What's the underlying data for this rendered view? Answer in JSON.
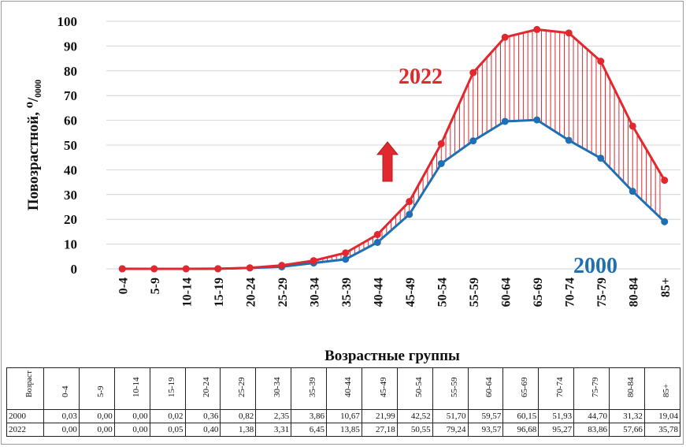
{
  "chart_data": {
    "type": "line",
    "ylabel": "Повозрастной, ⁰/₀₀₀₀",
    "xlabel": "Возрастные группы",
    "ylim": [
      0,
      100
    ],
    "yticks": [
      0,
      10,
      20,
      30,
      40,
      50,
      60,
      70,
      80,
      90,
      100
    ],
    "categories": [
      "0-4",
      "5-9",
      "10-14",
      "15-19",
      "20-24",
      "25-29",
      "30-34",
      "35-39",
      "40-44",
      "45-49",
      "50-54",
      "55-59",
      "60-64",
      "65-69",
      "70-74",
      "75-79",
      "80-84",
      "85+"
    ],
    "series": [
      {
        "name": "2000",
        "color": "#1f6fb4",
        "values": [
          0.03,
          0.0,
          0.0,
          0.02,
          0.36,
          0.82,
          2.35,
          3.86,
          10.67,
          21.99,
          42.52,
          51.7,
          59.57,
          60.15,
          51.93,
          44.7,
          31.32,
          19.04
        ]
      },
      {
        "name": "2022",
        "color": "#e0282e",
        "values": [
          0.0,
          0.0,
          0.0,
          0.05,
          0.4,
          1.38,
          3.31,
          6.45,
          13.85,
          27.18,
          50.55,
          79.24,
          93.57,
          96.68,
          95.27,
          83.86,
          57.66,
          35.78
        ]
      }
    ],
    "grid": true,
    "hatch_between_series": true,
    "annotations": {
      "up_arrow": true,
      "arrow_color": "#e0282e"
    }
  },
  "table": {
    "header_label": "Возраст",
    "categories": [
      "0-4",
      "5-9",
      "10-14",
      "15-19",
      "20-24",
      "25-29",
      "30-34",
      "35-39",
      "40-44",
      "45-49",
      "50-54",
      "55-59",
      "60-64",
      "65-69",
      "70-74",
      "75-79",
      "80-84",
      "85+"
    ],
    "rows": [
      {
        "label": "2000",
        "values": [
          "0,03",
          "0,00",
          "0,00",
          "0,02",
          "0,36",
          "0,82",
          "2,35",
          "3,86",
          "10,67",
          "21,99",
          "42,52",
          "51,70",
          "59,57",
          "60,15",
          "51,93",
          "44,70",
          "31,32",
          "19,04"
        ]
      },
      {
        "label": "2022",
        "values": [
          "0,00",
          "0,00",
          "0,00",
          "0,05",
          "0,40",
          "1,38",
          "3,31",
          "6,45",
          "13,85",
          "27,18",
          "50,55",
          "79,24",
          "93,57",
          "96,68",
          "95,27",
          "83,86",
          "57,66",
          "35,78"
        ]
      }
    ]
  }
}
